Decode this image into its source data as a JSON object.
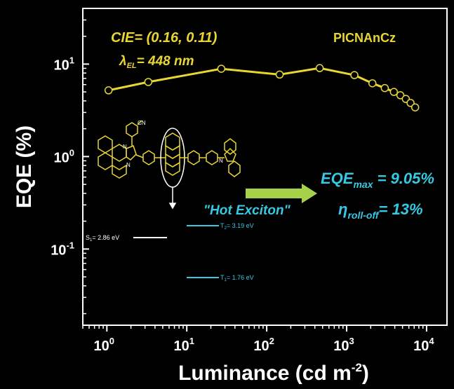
{
  "chart_data": {
    "type": "line",
    "xlabel": "Luminance (cd m",
    "xlabel_sup": "-2",
    "xlabel_close": ")",
    "ylabel": "EQE (%)",
    "x_scale": "log",
    "y_scale": "log",
    "xlim": [
      0.5,
      18000
    ],
    "ylim": [
      0.015,
      40
    ],
    "x_ticks": [
      {
        "base": "10",
        "exp": "0",
        "value": 1
      },
      {
        "base": "10",
        "exp": "1",
        "value": 10
      },
      {
        "base": "10",
        "exp": "2",
        "value": 100
      },
      {
        "base": "10",
        "exp": "3",
        "value": 1000
      },
      {
        "base": "10",
        "exp": "4",
        "value": 10000
      }
    ],
    "y_ticks": [
      {
        "base": "10",
        "exp": "1",
        "value": 10
      },
      {
        "base": "10",
        "exp": "0",
        "value": 1
      },
      {
        "base": "10",
        "exp": "-1",
        "value": 0.1
      }
    ],
    "series": [
      {
        "name": "PICNAnCz",
        "color": "#e8d634",
        "x": [
          1.05,
          3.3,
          27,
          145,
          460,
          1250,
          2100,
          3000,
          3900,
          4700,
          5500,
          6300,
          7200
        ],
        "y": [
          5.2,
          6.4,
          8.9,
          7.7,
          9.05,
          7.6,
          6.2,
          5.5,
          5.0,
          4.6,
          4.2,
          3.8,
          3.4
        ]
      }
    ],
    "annotations": {
      "cie": "CIE= (0.16, 0.11)",
      "lambda_symbol": "λ",
      "lambda_sub": "EL",
      "lambda_value": "= 448 nm",
      "compound": "PICNAnCz",
      "eqe_main": "EQE",
      "eqe_sub": "max",
      "eqe_value": " = 9.05%",
      "hot_exciton": "\"Hot Exciton\"",
      "eta_symbol": "η",
      "eta_sub": "roll-off",
      "eta_value": "= 13%",
      "cn_label": "CN",
      "n_label": "N",
      "s1_main": "S",
      "s1_sub": "1",
      "s1_value": "= 2.86 eV",
      "t2_main": "T",
      "t2_sub": "2",
      "t2_value": "= 3.19 eV",
      "t1_main": "T",
      "t1_sub": "1",
      "t1_value": "= 1.76 eV"
    },
    "colors": {
      "background": "#000000",
      "axes": "#ffffff",
      "series": "#e8d634",
      "cyan_text": "#36c9e3",
      "arrow": "#a8d14a",
      "molecule": "#e8d634"
    }
  }
}
